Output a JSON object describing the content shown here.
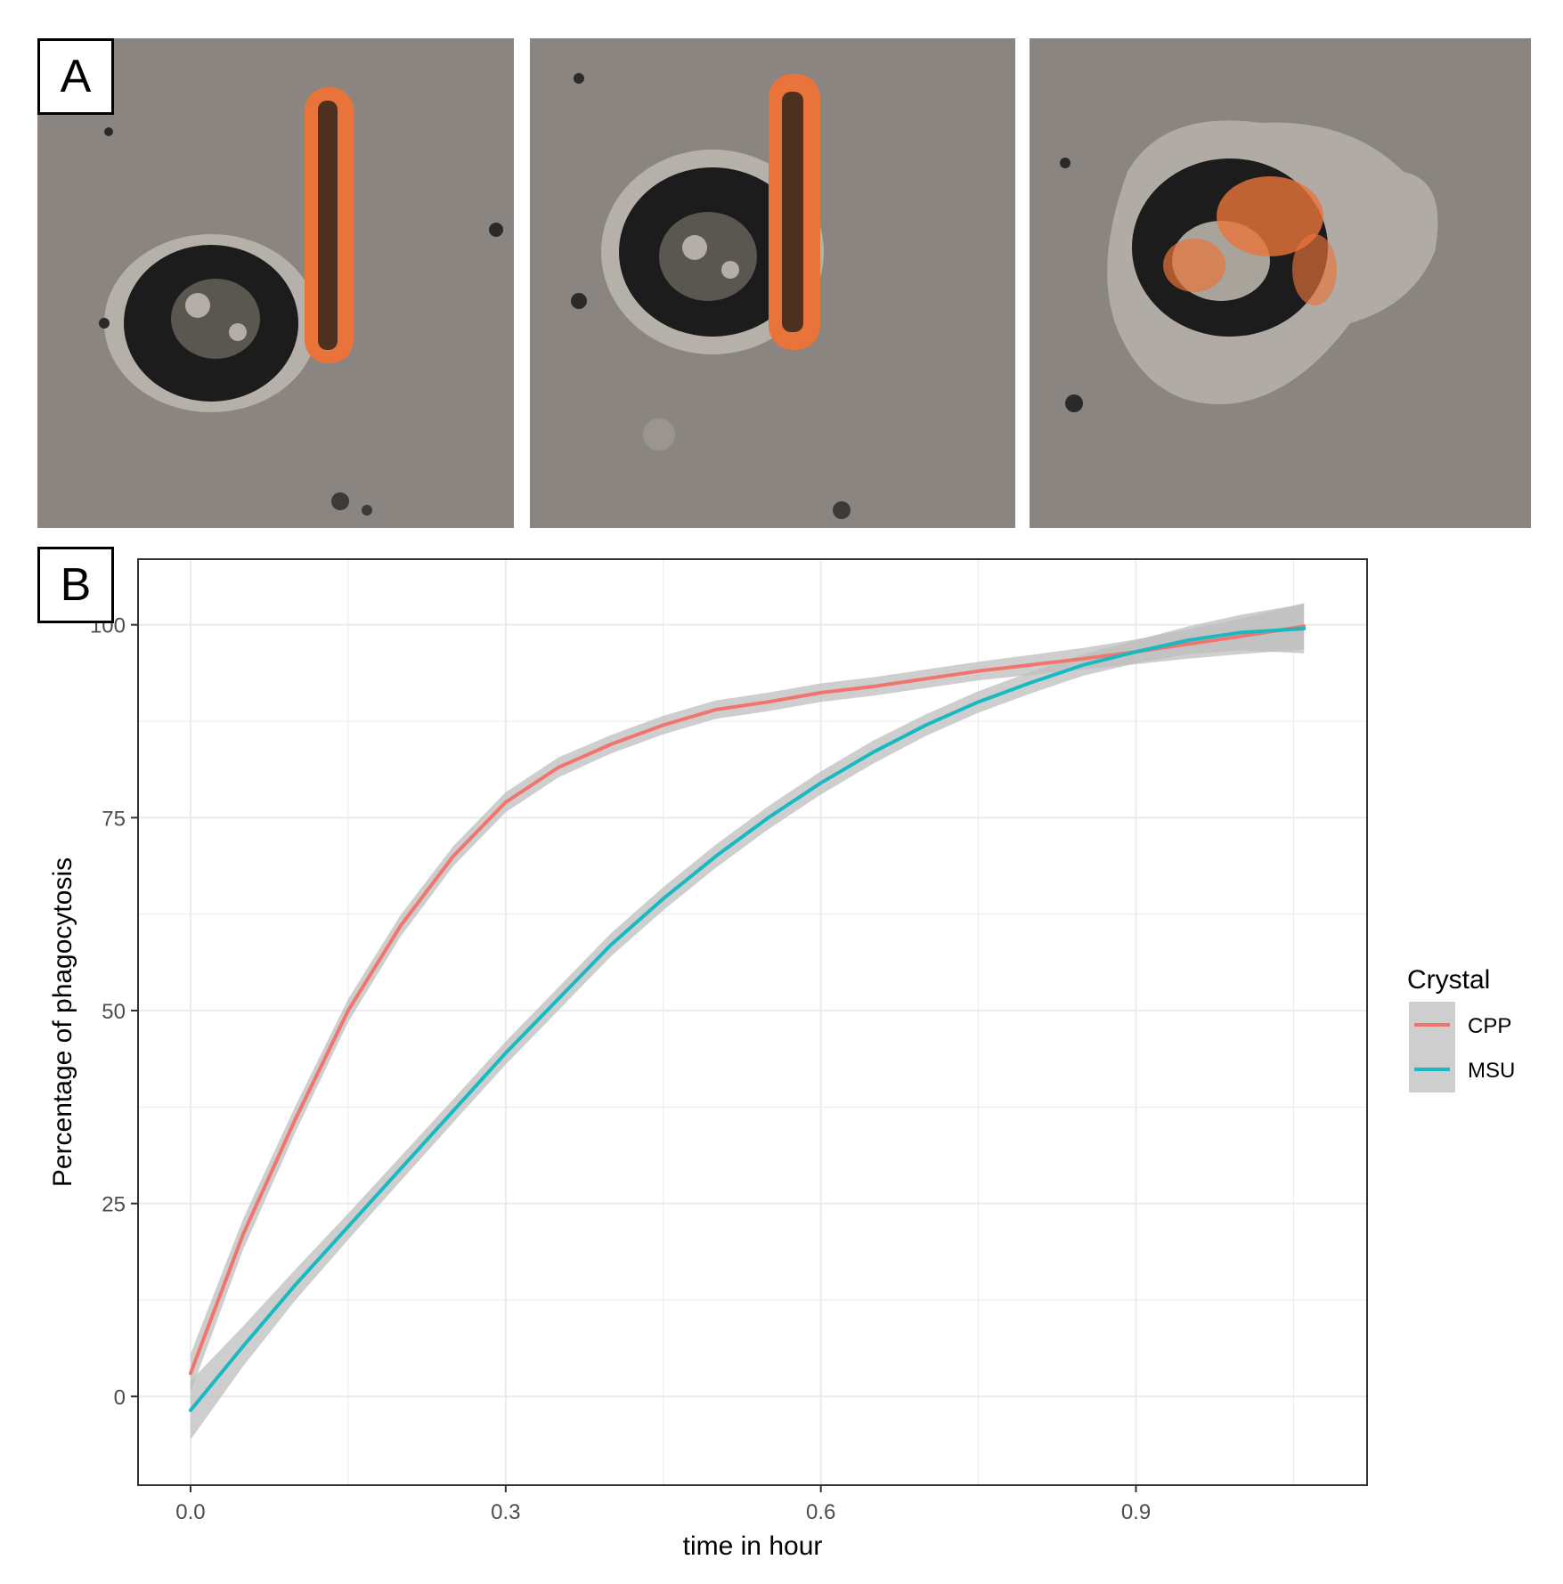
{
  "panel_labels": {
    "a": "A",
    "b": "B"
  },
  "micrographs": [
    {
      "name": "micrograph-1"
    },
    {
      "name": "micrograph-2"
    },
    {
      "name": "micrograph-3"
    }
  ],
  "colors": {
    "cpp": "#f0766d",
    "msu": "#18b9c0",
    "ribbon": "#bdbdbd",
    "background": "#8a8580"
  },
  "chart_data": {
    "type": "line",
    "xlabel": "time in hour",
    "ylabel": "Percentage of phagocytosis",
    "xlim": [
      -0.05,
      1.12
    ],
    "ylim": [
      -11.5,
      108.5
    ],
    "x_ticks": [
      0.0,
      0.3,
      0.6,
      0.9
    ],
    "x_tick_labels": [
      "0.0",
      "0.3",
      "0.6",
      "0.9"
    ],
    "y_ticks": [
      0,
      25,
      50,
      75,
      100
    ],
    "y_tick_labels": [
      "0",
      "25",
      "50",
      "75",
      "100"
    ],
    "grid": true,
    "legend": {
      "title": "Crystal",
      "placement": "right"
    },
    "series": [
      {
        "name": "CPP",
        "color": "#f0766d",
        "x": [
          0.0,
          0.05,
          0.1,
          0.15,
          0.2,
          0.25,
          0.3,
          0.35,
          0.4,
          0.45,
          0.5,
          0.55,
          0.6,
          0.65,
          0.7,
          0.75,
          0.8,
          0.85,
          0.9,
          0.95,
          1.0,
          1.06
        ],
        "y": [
          3,
          21,
          36,
          50,
          61,
          70,
          77,
          81.5,
          84.5,
          87,
          89,
          90,
          91.2,
          92,
          93,
          94,
          94.8,
          95.6,
          96.5,
          97.5,
          98.5,
          99.8
        ],
        "band": [
          2.5,
          2.0,
          1.7,
          1.5,
          1.4,
          1.3,
          1.3,
          1.3,
          1.2,
          1.2,
          1.2,
          1.2,
          1.2,
          1.2,
          1.2,
          1.2,
          1.3,
          1.4,
          1.6,
          1.9,
          2.3,
          3.0
        ]
      },
      {
        "name": "MSU",
        "color": "#18b9c0",
        "x": [
          0.0,
          0.05,
          0.1,
          0.15,
          0.2,
          0.25,
          0.3,
          0.35,
          0.4,
          0.45,
          0.5,
          0.55,
          0.6,
          0.65,
          0.7,
          0.75,
          0.8,
          0.85,
          0.9,
          0.95,
          1.0,
          1.06
        ],
        "y": [
          -1.8,
          6.5,
          14.5,
          22,
          29.5,
          37,
          44.5,
          51.5,
          58.5,
          64.5,
          70,
          75,
          79.5,
          83.5,
          87,
          90,
          92.5,
          94.8,
          96.5,
          98,
          99,
          99.5
        ],
        "band": [
          3.8,
          2.6,
          2.0,
          1.7,
          1.6,
          1.5,
          1.5,
          1.5,
          1.5,
          1.5,
          1.5,
          1.5,
          1.5,
          1.5,
          1.4,
          1.4,
          1.4,
          1.4,
          1.5,
          1.8,
          2.3,
          3.2
        ]
      }
    ]
  }
}
